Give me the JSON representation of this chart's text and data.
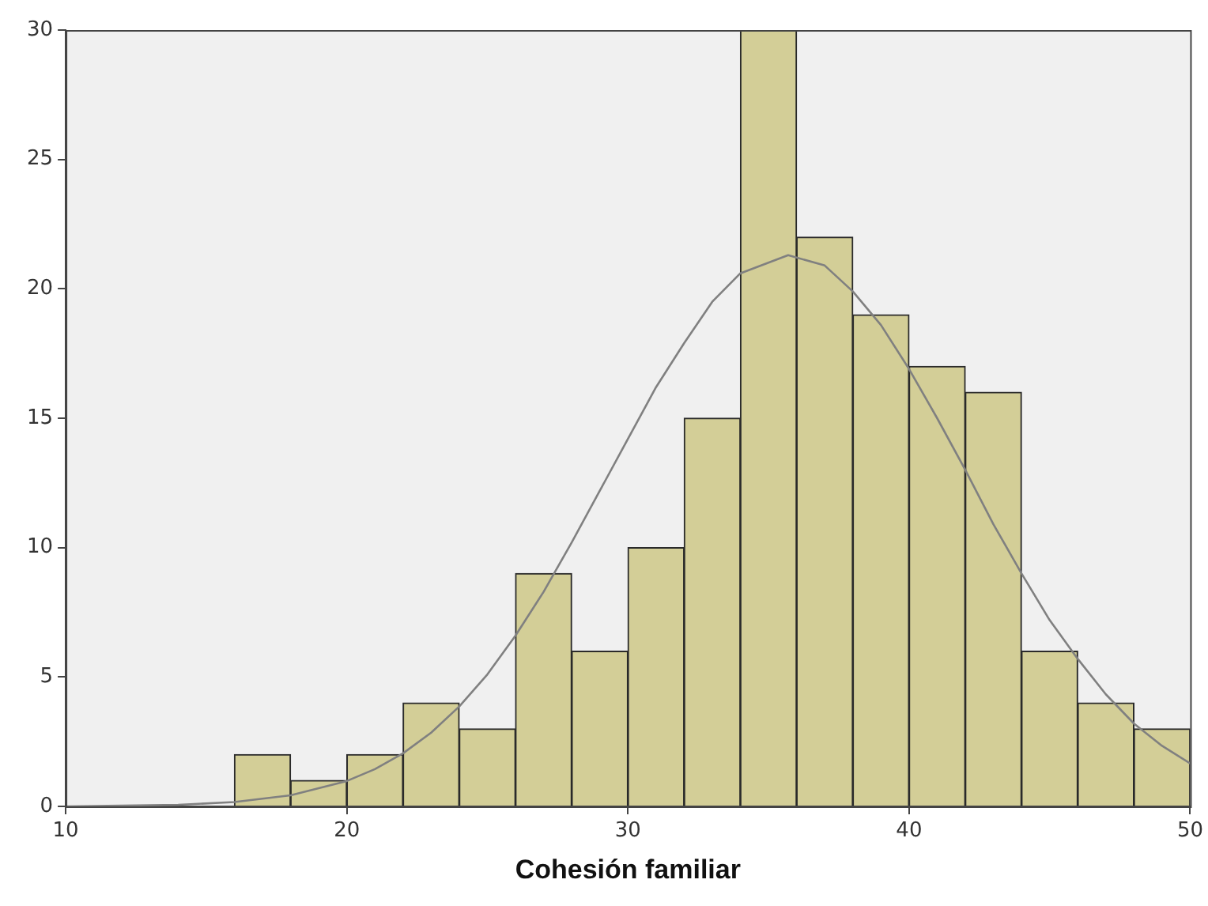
{
  "chart_data": {
    "type": "histogram",
    "xlabel": "Cohesión familiar",
    "bins": [
      16,
      18,
      20,
      22,
      24,
      26,
      28,
      30,
      32,
      34,
      36,
      38,
      40,
      42,
      44,
      46,
      48,
      50
    ],
    "values": [
      2,
      1,
      2,
      4,
      3,
      9,
      6,
      10,
      15,
      30,
      22,
      19,
      17,
      16,
      6,
      4,
      3
    ],
    "color": "#d3ce97",
    "series": [
      {
        "type": "line",
        "color": "#808080",
        "x": [
          10,
          14,
          16,
          18,
          20,
          21,
          22,
          23,
          24,
          25,
          26,
          27,
          28,
          29,
          30,
          31,
          32,
          33,
          34,
          35.7,
          37,
          38,
          39,
          40,
          41,
          42,
          43,
          44,
          45,
          46,
          47,
          48,
          49,
          50
        ],
        "values": [
          0,
          0.06,
          0.17,
          0.43,
          0.98,
          1.44,
          2.05,
          2.85,
          3.86,
          5.1,
          6.6,
          8.29,
          10.2,
          12.2,
          14.2,
          16.2,
          17.9,
          19.5,
          20.6,
          21.3,
          20.9,
          19.9,
          18.6,
          16.9,
          15,
          13,
          10.9,
          9,
          7.2,
          5.7,
          4.33,
          3.2,
          2.34,
          1.66
        ]
      }
    ],
    "xlim": [
      10,
      50
    ],
    "xticks": [
      10,
      20,
      30,
      40,
      50
    ],
    "ylim": [
      0,
      30
    ],
    "yticks": [
      0,
      5,
      10,
      15,
      20,
      25,
      30
    ],
    "grid": false,
    "legend": false
  }
}
